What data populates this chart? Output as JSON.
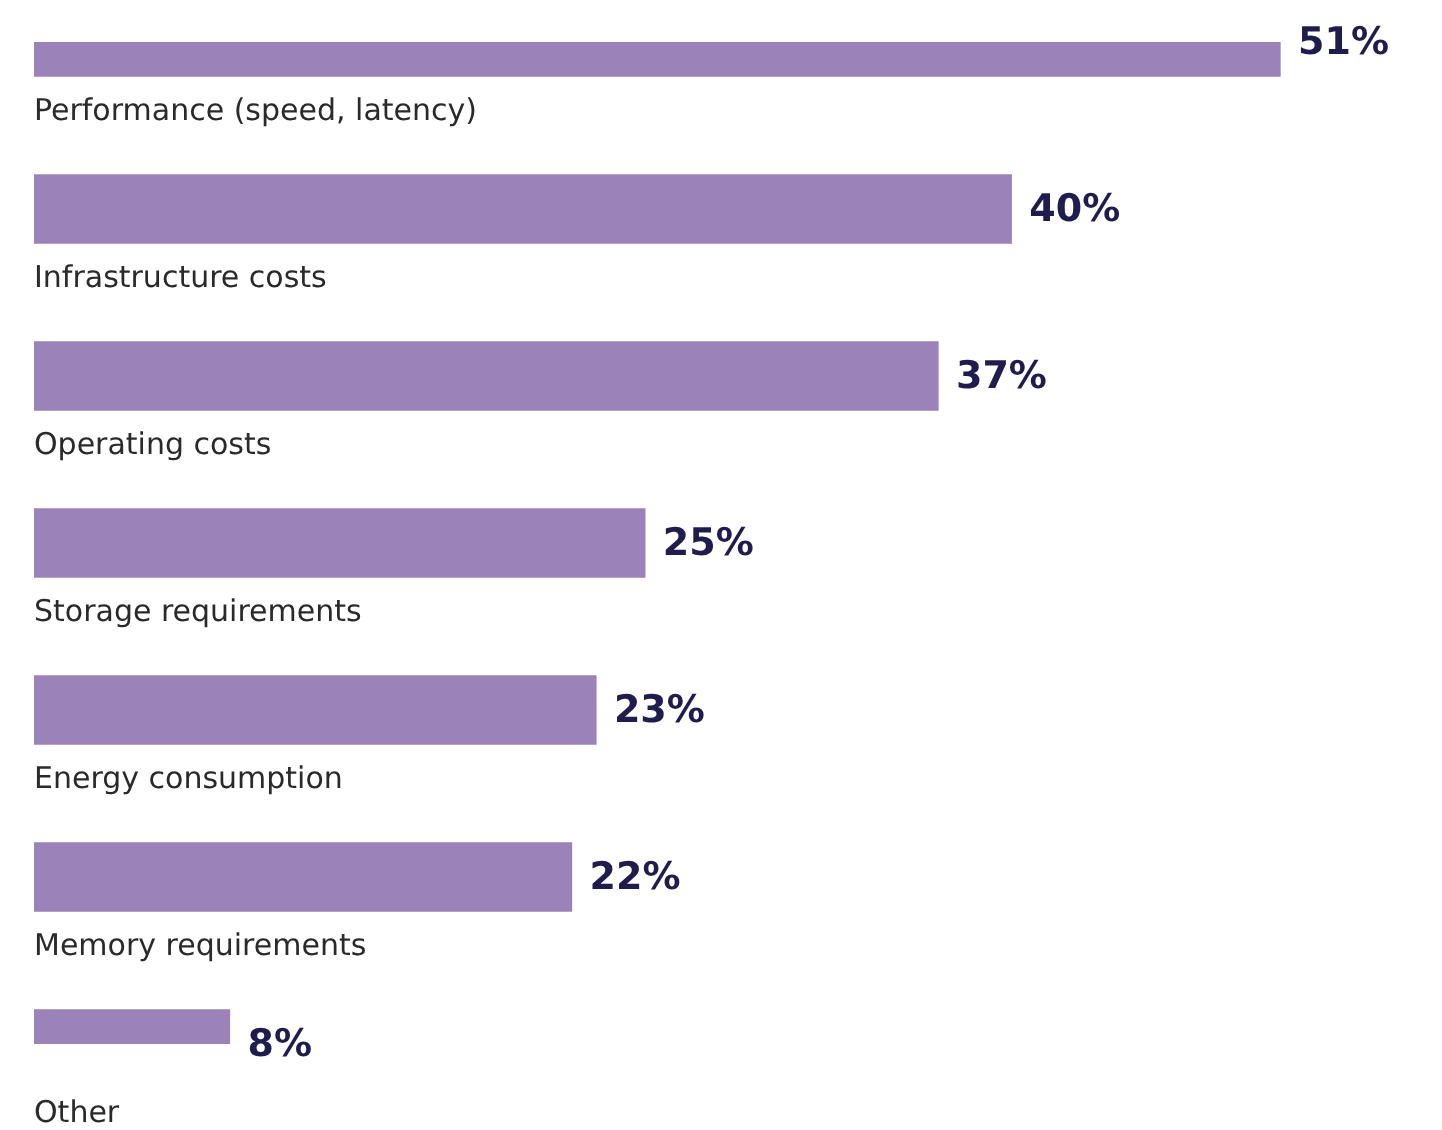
{
  "chart_data": {
    "type": "bar",
    "orientation": "horizontal",
    "data_labels": true,
    "legend": false,
    "categories": [
      "Performance (speed, latency)",
      "Infrastructure costs",
      "Operating costs",
      "Storage requirements",
      "Energy consumption",
      "Memory requirements",
      "Other"
    ],
    "values": [
      51,
      40,
      37,
      25,
      23,
      22,
      8
    ],
    "color": "#9b82b9",
    "value_labels": [
      "51%",
      "40%",
      "37%",
      "25%",
      "23%",
      "22%",
      "8%"
    ]
  }
}
